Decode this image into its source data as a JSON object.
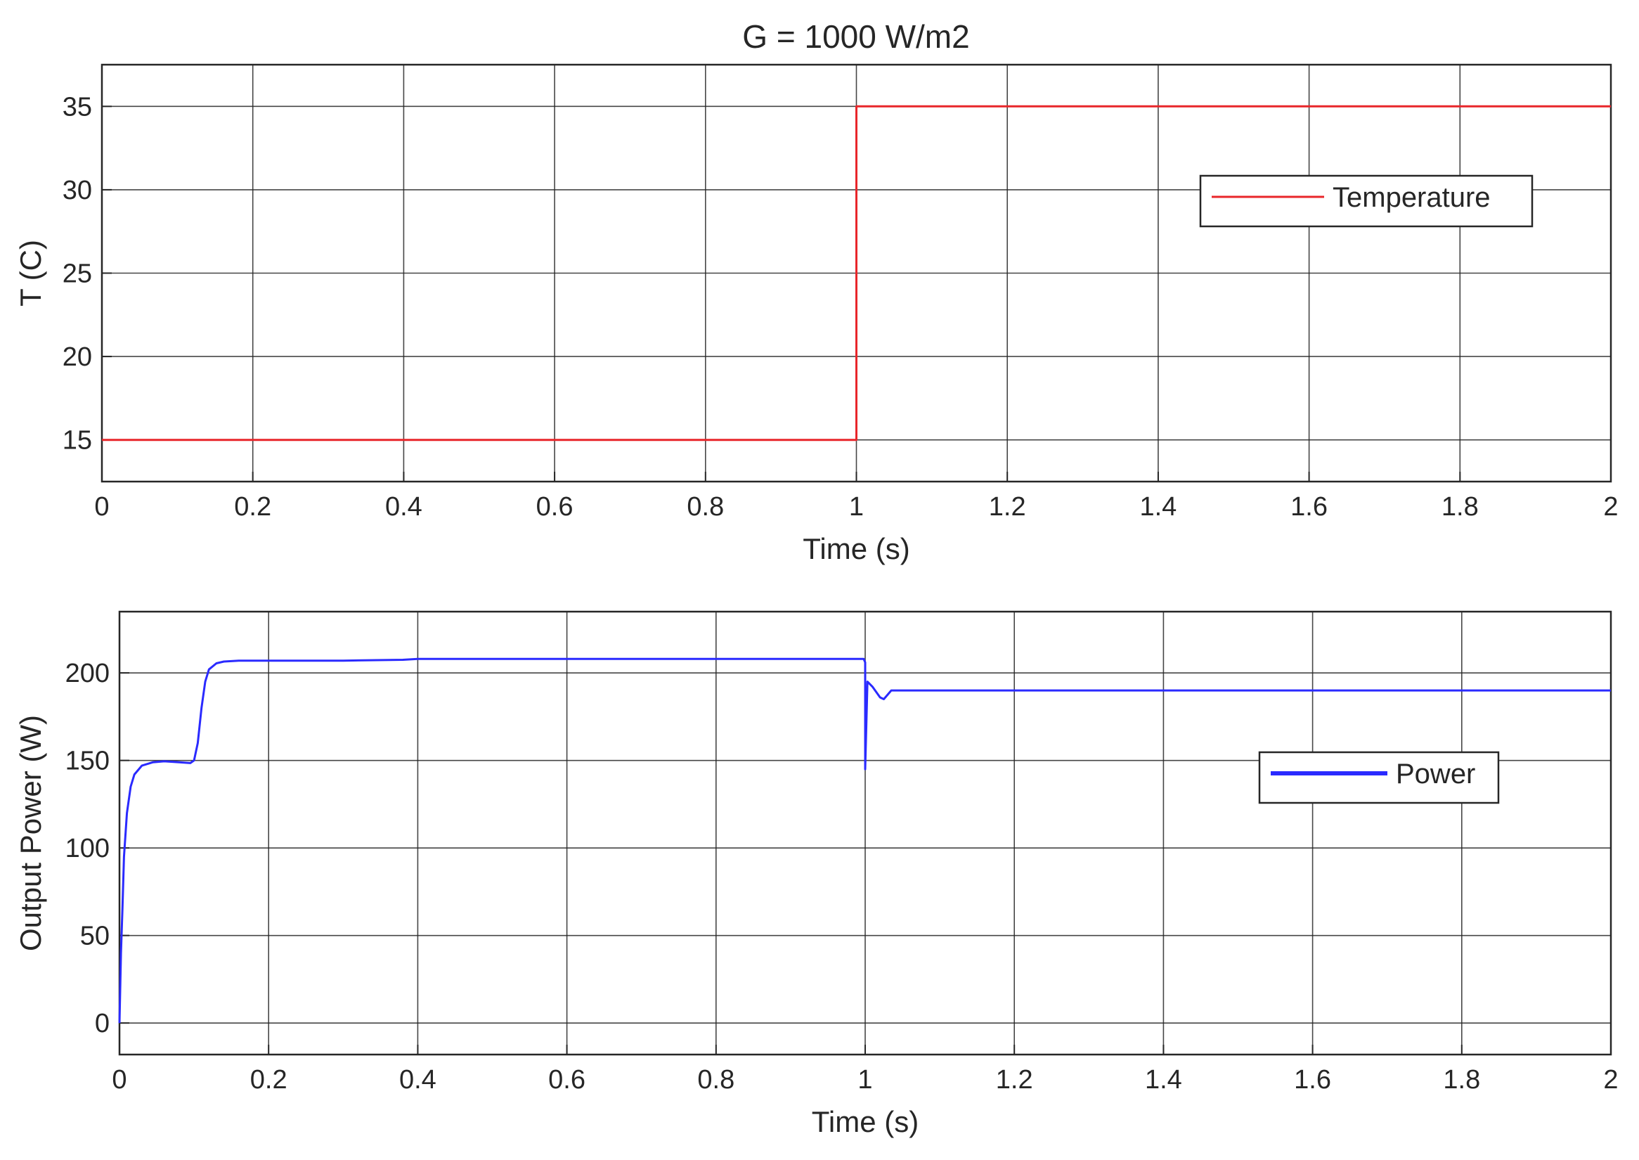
{
  "figure": {
    "title": "G = 1000 W/m2"
  },
  "chart_data": [
    {
      "type": "line",
      "title": "G = 1000 W/m2",
      "xlabel": "Time (s)",
      "ylabel": "T (C)",
      "xlim": [
        0,
        2
      ],
      "ylim": [
        12.5,
        37.5
      ],
      "xticks": [
        "0",
        "0.2",
        "0.4",
        "0.6",
        "0.8",
        "1",
        "1.2",
        "1.4",
        "1.6",
        "1.8",
        "2"
      ],
      "yticks": [
        "15",
        "20",
        "25",
        "30",
        "35"
      ],
      "grid": true,
      "legend": {
        "position": "top-right"
      },
      "series": [
        {
          "name": "Temperature",
          "color": "#e8262a",
          "x": [
            0,
            1,
            1,
            2
          ],
          "y": [
            15,
            15,
            35,
            35
          ]
        }
      ]
    },
    {
      "type": "line",
      "title": "",
      "xlabel": "Time (s)",
      "ylabel": "Output Power (W)",
      "xlim": [
        0,
        2
      ],
      "ylim": [
        -18,
        235
      ],
      "xticks": [
        "0",
        "0.2",
        "0.4",
        "0.6",
        "0.8",
        "1",
        "1.2",
        "1.4",
        "1.6",
        "1.8",
        "2"
      ],
      "yticks": [
        "0",
        "50",
        "100",
        "150",
        "200"
      ],
      "grid": true,
      "legend": {
        "position": "middle-right"
      },
      "series": [
        {
          "name": "Power",
          "color": "#2a2aff",
          "x": [
            0,
            0.002,
            0.004,
            0.006,
            0.01,
            0.015,
            0.02,
            0.03,
            0.045,
            0.06,
            0.08,
            0.095,
            0.1,
            0.105,
            0.11,
            0.115,
            0.12,
            0.13,
            0.14,
            0.16,
            0.2,
            0.3,
            0.38,
            0.4,
            0.5,
            0.6,
            0.7,
            0.8,
            0.9,
            0.998,
            1.0,
            1.0,
            1.003,
            1.01,
            1.02,
            1.025,
            1.035,
            1.05,
            1.1,
            1.2,
            1.4,
            1.6,
            1.8,
            2.0
          ],
          "y": [
            0,
            40,
            65,
            95,
            120,
            135,
            142,
            147,
            149,
            149.5,
            149,
            148.5,
            150,
            160,
            180,
            195,
            202,
            205.5,
            206.5,
            207,
            207,
            207,
            207.5,
            208,
            208,
            208,
            208,
            208,
            208,
            208,
            206,
            145,
            195,
            192,
            186,
            185,
            190,
            190,
            190,
            190,
            190,
            190,
            190,
            190
          ]
        }
      ]
    }
  ]
}
